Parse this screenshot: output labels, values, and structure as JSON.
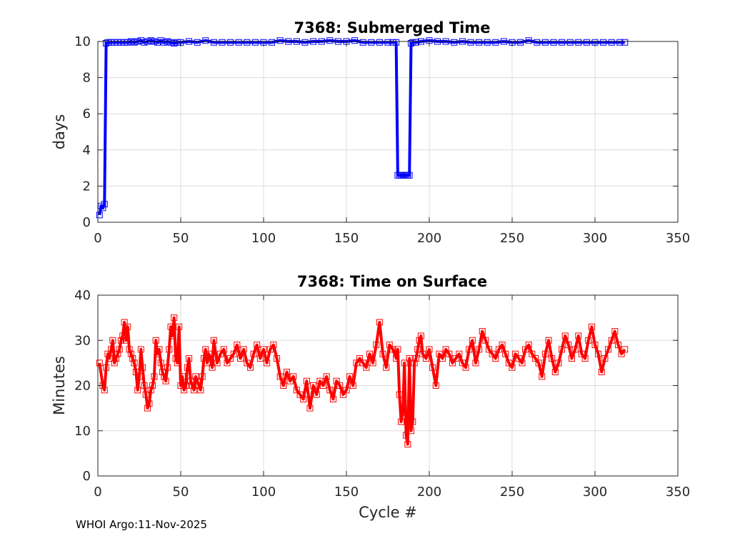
{
  "chart_data": [
    {
      "type": "line",
      "title": "7368: Submerged Time",
      "xlabel": "",
      "ylabel": "days",
      "xlim": [
        0,
        350
      ],
      "ylim": [
        0,
        10
      ],
      "xticks": [
        0,
        50,
        100,
        150,
        200,
        250,
        300,
        350
      ],
      "yticks": [
        0,
        2,
        4,
        6,
        8,
        10
      ],
      "grid": true,
      "color": "#0000ff",
      "marker": "square",
      "series": [
        {
          "name": "Submerged Time",
          "x": [
            1,
            2,
            3,
            4,
            5,
            6,
            8,
            10,
            12,
            14,
            16,
            18,
            20,
            22,
            24,
            26,
            28,
            30,
            32,
            34,
            36,
            38,
            40,
            42,
            44,
            46,
            48,
            50,
            55,
            60,
            65,
            70,
            75,
            80,
            85,
            90,
            95,
            100,
            105,
            110,
            115,
            120,
            125,
            130,
            135,
            140,
            145,
            150,
            155,
            160,
            165,
            170,
            175,
            178,
            180,
            181,
            182,
            183,
            184,
            185,
            186,
            187,
            188,
            189,
            190,
            192,
            195,
            200,
            205,
            210,
            215,
            220,
            225,
            230,
            235,
            240,
            245,
            250,
            255,
            260,
            265,
            270,
            275,
            280,
            285,
            290,
            295,
            300,
            305,
            310,
            315,
            318
          ],
          "values": [
            0.4,
            0.9,
            0.8,
            1.0,
            9.9,
            9.95,
            9.95,
            9.95,
            9.95,
            9.95,
            9.95,
            9.95,
            10.0,
            9.95,
            10.0,
            10.05,
            9.95,
            10.0,
            10.05,
            10.0,
            9.95,
            10.05,
            9.95,
            10.0,
            9.95,
            9.9,
            9.95,
            9.95,
            10.0,
            9.95,
            10.05,
            9.95,
            9.95,
            9.95,
            9.95,
            9.95,
            9.95,
            9.95,
            9.95,
            10.05,
            10.0,
            10.0,
            9.95,
            10.0,
            10.0,
            10.05,
            10.0,
            10.0,
            10.05,
            9.95,
            9.95,
            9.95,
            9.95,
            9.95,
            9.95,
            2.6,
            2.6,
            2.6,
            2.6,
            2.6,
            2.6,
            2.6,
            2.6,
            9.9,
            9.95,
            9.95,
            10.0,
            10.05,
            10.0,
            10.0,
            9.95,
            10.0,
            9.95,
            9.95,
            9.95,
            9.95,
            10.0,
            9.95,
            9.95,
            10.05,
            9.95,
            9.95,
            9.95,
            9.95,
            9.95,
            9.95,
            9.95,
            9.95,
            9.95,
            9.95,
            9.95,
            9.95
          ]
        }
      ]
    },
    {
      "type": "line",
      "title": "7368: Time on Surface",
      "xlabel": "Cycle #",
      "ylabel": "Minutes",
      "xlim": [
        0,
        350
      ],
      "ylim": [
        0,
        40
      ],
      "xticks": [
        0,
        50,
        100,
        150,
        200,
        250,
        300,
        350
      ],
      "yticks": [
        0,
        10,
        20,
        30,
        40
      ],
      "grid": true,
      "color": "#ff0000",
      "marker": "square",
      "series": [
        {
          "name": "Time on Surface",
          "x": [
            1,
            3,
            4,
            5,
            6,
            7,
            8,
            9,
            10,
            11,
            12,
            13,
            14,
            15,
            16,
            17,
            18,
            19,
            20,
            21,
            22,
            23,
            24,
            25,
            26,
            27,
            28,
            29,
            30,
            31,
            32,
            33,
            34,
            35,
            36,
            37,
            38,
            39,
            40,
            41,
            42,
            43,
            44,
            45,
            46,
            47,
            48,
            49,
            50,
            51,
            52,
            53,
            54,
            55,
            56,
            57,
            58,
            59,
            60,
            61,
            62,
            63,
            64,
            65,
            66,
            67,
            68,
            69,
            70,
            72,
            74,
            76,
            78,
            80,
            82,
            84,
            86,
            88,
            90,
            92,
            94,
            96,
            98,
            100,
            102,
            104,
            106,
            108,
            110,
            112,
            114,
            116,
            118,
            120,
            122,
            124,
            126,
            128,
            130,
            132,
            134,
            136,
            138,
            140,
            142,
            144,
            146,
            148,
            150,
            152,
            154,
            156,
            158,
            160,
            162,
            164,
            166,
            168,
            170,
            172,
            174,
            176,
            178,
            180,
            181,
            182,
            183,
            184,
            185,
            186,
            187,
            188,
            189,
            190,
            191,
            192,
            193,
            194,
            195,
            196,
            198,
            200,
            202,
            204,
            206,
            208,
            210,
            212,
            214,
            216,
            218,
            220,
            222,
            224,
            226,
            228,
            230,
            232,
            234,
            236,
            238,
            240,
            242,
            244,
            246,
            248,
            250,
            252,
            254,
            256,
            258,
            260,
            262,
            264,
            266,
            268,
            270,
            272,
            274,
            276,
            278,
            280,
            282,
            284,
            286,
            288,
            290,
            292,
            294,
            296,
            298,
            300,
            302,
            304,
            306,
            308,
            310,
            312,
            314,
            316,
            318
          ],
          "values": [
            25,
            20,
            19,
            24,
            27,
            26,
            28,
            30,
            25,
            26,
            27,
            28,
            30,
            31,
            34,
            30,
            33,
            28,
            27,
            26,
            25,
            23,
            19,
            22,
            28,
            24,
            20,
            18,
            15,
            16,
            19,
            20,
            22,
            30,
            27,
            28,
            25,
            23,
            22,
            21,
            24,
            28,
            33,
            31,
            35,
            26,
            25,
            33,
            20,
            22,
            19,
            20,
            24,
            26,
            21,
            20,
            19,
            22,
            21,
            20,
            19,
            22,
            26,
            28,
            25,
            27,
            26,
            24,
            30,
            25,
            27,
            28,
            25,
            26,
            27,
            29,
            26,
            28,
            25,
            24,
            27,
            29,
            26,
            28,
            25,
            28,
            29,
            26,
            22,
            20,
            23,
            21,
            22,
            19,
            18,
            17,
            21,
            15,
            20,
            18,
            21,
            20,
            22,
            19,
            17,
            21,
            20,
            18,
            19,
            22,
            20,
            25,
            26,
            25,
            24,
            27,
            25,
            29,
            34,
            27,
            24,
            29,
            28,
            26,
            28,
            18,
            12,
            14,
            25,
            9,
            7,
            26,
            10,
            12,
            25,
            26,
            28,
            30,
            31,
            27,
            26,
            28,
            24,
            20,
            27,
            26,
            28,
            27,
            25,
            26,
            27,
            25,
            24,
            28,
            30,
            25,
            28,
            32,
            30,
            28,
            27,
            26,
            28,
            29,
            27,
            25,
            24,
            27,
            26,
            25,
            28,
            29,
            27,
            26,
            25,
            22,
            27,
            30,
            26,
            23,
            25,
            28,
            31,
            29,
            26,
            28,
            31,
            27,
            26,
            30,
            33,
            29,
            27,
            23,
            26,
            28,
            30,
            32,
            29,
            27,
            28
          ]
        }
      ]
    }
  ],
  "footer": {
    "text": "WHOI Argo:11-Nov-2025"
  }
}
